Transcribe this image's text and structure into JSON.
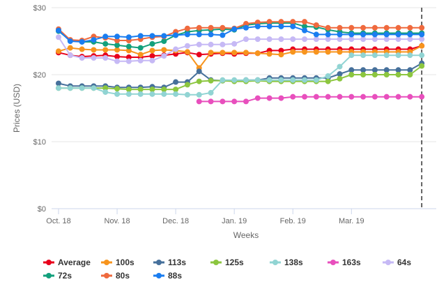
{
  "chart_data": {
    "type": "line",
    "title": "",
    "xlabel": "Weeks",
    "ylabel": "Prices (USD)",
    "ylim": [
      0,
      30
    ],
    "y_ticks": [
      {
        "value": 0,
        "label": "$0"
      },
      {
        "value": 10,
        "label": "$10"
      },
      {
        "value": 20,
        "label": "$20"
      },
      {
        "value": 30,
        "label": "$30"
      }
    ],
    "x_range": [
      0,
      32
    ],
    "x_ticks": [
      {
        "week": 0,
        "label": "Oct. 18"
      },
      {
        "week": 5,
        "label": "Nov. 18"
      },
      {
        "week": 10,
        "label": "Dec. 18"
      },
      {
        "week": 15,
        "label": "Jan. 19"
      },
      {
        "week": 20,
        "label": "Feb. 19"
      },
      {
        "week": 25,
        "label": "Mar. 19"
      }
    ],
    "dashed_marker_week": 31,
    "grid": "horizontal",
    "legend_position": "bottom",
    "series": [
      {
        "name": "Average",
        "color": "#e8001c",
        "x": [
          0,
          1,
          2,
          3,
          4,
          5,
          6,
          7,
          8,
          9,
          10,
          11,
          12,
          13,
          14,
          15,
          16,
          17,
          18,
          19,
          20,
          21,
          22,
          23,
          24,
          25,
          26,
          27,
          28,
          29,
          30,
          31
        ],
        "values": [
          23.3,
          22.9,
          22.7,
          22.8,
          22.9,
          22.7,
          22.6,
          22.6,
          22.8,
          22.9,
          23.1,
          23.3,
          23.0,
          23.1,
          23.2,
          23.1,
          23.2,
          23.2,
          23.6,
          23.6,
          23.8,
          23.8,
          23.8,
          23.8,
          23.8,
          23.8,
          23.8,
          23.8,
          23.8,
          23.8,
          23.8,
          24.3
        ]
      },
      {
        "name": "100s",
        "color": "#f7941d",
        "x": [
          0,
          1,
          2,
          3,
          4,
          5,
          6,
          7,
          8,
          9,
          10,
          11,
          12,
          13,
          14,
          15,
          16,
          17,
          18,
          19,
          20,
          21,
          22,
          23,
          24,
          25,
          26,
          27,
          28,
          29,
          30,
          31
        ],
        "values": [
          23.5,
          24.0,
          23.8,
          23.7,
          23.7,
          23.7,
          23.6,
          23.0,
          23.6,
          23.7,
          23.6,
          23.4,
          21.0,
          23.3,
          23.3,
          23.3,
          23.3,
          23.2,
          23.1,
          23.0,
          23.4,
          23.4,
          23.4,
          23.4,
          23.4,
          23.4,
          23.4,
          23.4,
          23.4,
          23.4,
          23.4,
          24.3
        ]
      },
      {
        "name": "113s",
        "color": "#46709b",
        "x": [
          0,
          1,
          2,
          3,
          4,
          5,
          6,
          7,
          8,
          9,
          10,
          11,
          12,
          13,
          14,
          15,
          16,
          17,
          18,
          19,
          20,
          21,
          22,
          23,
          24,
          25,
          26,
          27,
          28,
          29,
          30,
          31
        ],
        "values": [
          18.7,
          18.3,
          18.3,
          18.3,
          18.3,
          18.1,
          18.1,
          18.1,
          18.2,
          18.1,
          18.9,
          18.9,
          20.5,
          19.2,
          19.1,
          19.1,
          19.2,
          19.2,
          19.5,
          19.5,
          19.5,
          19.5,
          19.5,
          19.5,
          20.1,
          20.7,
          20.7,
          20.7,
          20.7,
          20.7,
          20.7,
          21.7
        ]
      },
      {
        "name": "125s",
        "color": "#8cc63f",
        "x": [
          0,
          1,
          2,
          3,
          4,
          5,
          6,
          7,
          8,
          9,
          10,
          11,
          12,
          13,
          14,
          15,
          16,
          17,
          18,
          19,
          20,
          21,
          22,
          23,
          24,
          25,
          26,
          27,
          28,
          29,
          30,
          31
        ],
        "values": [
          18.0,
          18.0,
          18.0,
          18.0,
          18.0,
          17.9,
          17.8,
          17.8,
          17.8,
          17.8,
          17.8,
          18.5,
          19.0,
          19.1,
          19.1,
          19.0,
          19.0,
          19.1,
          19.0,
          19.0,
          19.0,
          19.0,
          19.0,
          19.0,
          19.4,
          20.0,
          20.0,
          20.0,
          20.0,
          20.0,
          20.0,
          21.3
        ]
      },
      {
        "name": "138s",
        "color": "#91d4d3",
        "x": [
          0,
          1,
          2,
          3,
          4,
          5,
          6,
          7,
          8,
          9,
          10,
          11,
          12,
          13,
          14,
          15,
          16,
          17,
          18,
          19,
          20,
          21,
          22,
          23,
          24,
          25,
          26,
          27,
          28,
          29,
          30,
          31
        ],
        "values": [
          18.0,
          18.0,
          18.0,
          18.0,
          17.4,
          17.1,
          17.1,
          17.1,
          17.1,
          17.1,
          17.1,
          17.0,
          17.0,
          17.3,
          19.2,
          19.2,
          19.2,
          19.2,
          19.2,
          19.2,
          19.2,
          19.2,
          19.2,
          19.8,
          21.2,
          22.9,
          22.9,
          22.9,
          22.9,
          22.9,
          22.9,
          22.9
        ]
      },
      {
        "name": "163s",
        "color": "#e84fbd",
        "x": [
          12,
          13,
          14,
          15,
          16,
          17,
          18,
          19,
          20,
          21,
          22,
          23,
          24,
          25,
          26,
          27,
          28,
          29,
          30,
          31
        ],
        "values": [
          16.0,
          16.0,
          16.0,
          16.0,
          16.0,
          16.5,
          16.5,
          16.5,
          16.7,
          16.7,
          16.7,
          16.7,
          16.7,
          16.7,
          16.7,
          16.7,
          16.7,
          16.7,
          16.7,
          16.7
        ]
      },
      {
        "name": "64s",
        "color": "#c6b9f5",
        "x": [
          0,
          1,
          2,
          3,
          4,
          5,
          6,
          7,
          8,
          9,
          10,
          11,
          12,
          13,
          14,
          15,
          16,
          17,
          18,
          19,
          20,
          21,
          22,
          23,
          24,
          25,
          26,
          27,
          28,
          29,
          30,
          31
        ],
        "values": [
          25.6,
          22.9,
          22.5,
          22.5,
          22.5,
          22.0,
          22.0,
          22.1,
          22.1,
          22.8,
          23.8,
          24.3,
          24.5,
          24.5,
          24.5,
          24.6,
          25.3,
          25.3,
          25.3,
          25.3,
          25.3,
          25.3,
          25.3,
          25.3,
          25.3,
          25.3,
          25.3,
          25.3,
          25.3,
          25.3,
          25.3,
          25.3
        ]
      },
      {
        "name": "72s",
        "color": "#13a07c",
        "x": [
          0,
          1,
          2,
          3,
          4,
          5,
          6,
          7,
          8,
          9,
          10,
          11,
          12,
          13,
          14,
          15,
          16,
          17,
          18,
          19,
          20,
          21,
          22,
          23,
          24,
          25,
          26,
          27,
          28,
          29,
          30,
          31
        ],
        "values": [
          26.5,
          25.1,
          24.9,
          24.9,
          24.6,
          24.4,
          24.2,
          24.0,
          24.6,
          25.0,
          25.9,
          26.4,
          26.6,
          26.7,
          26.8,
          26.7,
          27.4,
          27.6,
          27.7,
          27.7,
          27.7,
          27.2,
          27.1,
          26.7,
          26.4,
          26.2,
          26.2,
          26.2,
          26.2,
          26.2,
          26.2,
          26.2
        ]
      },
      {
        "name": "80s",
        "color": "#ef6a3e",
        "x": [
          0,
          1,
          2,
          3,
          4,
          5,
          6,
          7,
          8,
          9,
          10,
          11,
          12,
          13,
          14,
          15,
          16,
          17,
          18,
          19,
          20,
          21,
          22,
          23,
          24,
          25,
          26,
          27,
          28,
          29,
          30,
          31
        ],
        "values": [
          26.8,
          25.2,
          25.1,
          25.7,
          25.5,
          25.1,
          25.1,
          25.3,
          25.6,
          25.7,
          26.4,
          26.9,
          27.0,
          27.0,
          27.0,
          26.9,
          27.6,
          27.8,
          27.9,
          27.9,
          27.9,
          27.9,
          27.4,
          27.0,
          27.0,
          27.0,
          27.0,
          27.0,
          27.0,
          27.0,
          27.0,
          27.0
        ]
      },
      {
        "name": "88s",
        "color": "#1a7df0",
        "x": [
          0,
          1,
          2,
          3,
          4,
          5,
          6,
          7,
          8,
          9,
          10,
          11,
          12,
          13,
          14,
          15,
          16,
          17,
          18,
          19,
          20,
          21,
          22,
          23,
          24,
          25,
          26,
          27,
          28,
          29,
          30,
          31
        ],
        "values": [
          26.6,
          25.0,
          24.9,
          25.2,
          25.7,
          25.7,
          25.6,
          25.8,
          25.8,
          25.8,
          25.9,
          26.0,
          26.0,
          26.0,
          25.9,
          26.8,
          27.0,
          27.2,
          27.2,
          27.2,
          27.2,
          26.6,
          26.0,
          26.0,
          26.0,
          26.0,
          26.0,
          26.0,
          26.0,
          26.0,
          26.0,
          26.0
        ]
      }
    ]
  }
}
